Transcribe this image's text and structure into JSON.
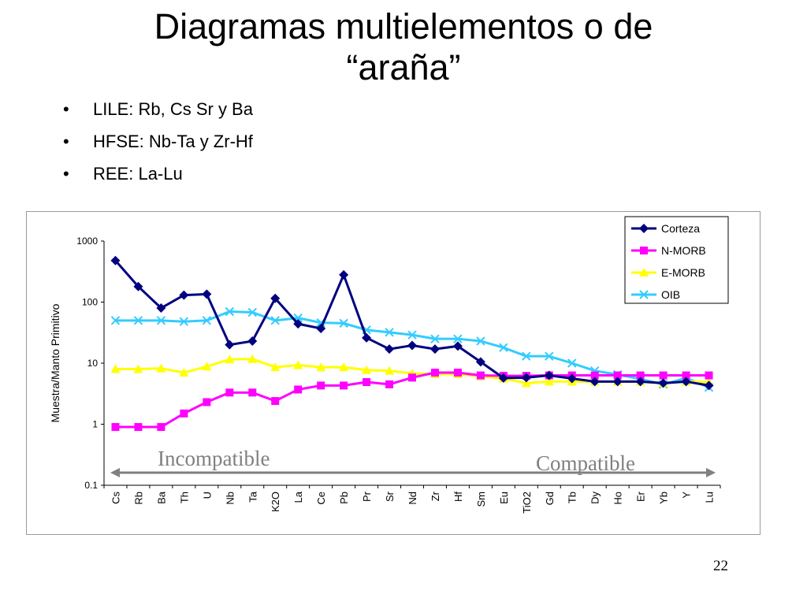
{
  "slide": {
    "title_line1": "Diagramas multielementos o de",
    "title_line2": "“araña”",
    "bullets": [
      "LILE: Rb, Cs Sr y Ba",
      "HFSE: Nb-Ta y Zr-Hf",
      "REE: La-Lu"
    ],
    "bullet_symbol": "•",
    "page_number": "22"
  },
  "chart_data": {
    "type": "line",
    "title": "",
    "ylabel": "Muestra/Manto Primitivo",
    "xlabel": "",
    "yscale": "log",
    "ylim": [
      0.1,
      1000
    ],
    "yticks": [
      "0.1",
      "1",
      "10",
      "100",
      "1000"
    ],
    "grid": false,
    "legend_position": "top-right",
    "categories": [
      "Cs",
      "Rb",
      "Ba",
      "Th",
      "U",
      "Nb",
      "Ta",
      "K2O",
      "La",
      "Ce",
      "Pb",
      "Pr",
      "Sr",
      "Nd",
      "Zr",
      "Hf",
      "Sm",
      "Eu",
      "TiO2",
      "Gd",
      "Tb",
      "Dy",
      "Ho",
      "Er",
      "Yb",
      "Y",
      "Lu"
    ],
    "series": [
      {
        "name": "Corteza",
        "color": "#000080",
        "marker": "diamond",
        "values": [
          480,
          180,
          80,
          130,
          135,
          20,
          23,
          115,
          44,
          37,
          280,
          26,
          17,
          19.5,
          17,
          19,
          10.5,
          5.7,
          5.8,
          6.3,
          5.6,
          5.0,
          5.0,
          5.0,
          4.7,
          5.0,
          4.3
        ]
      },
      {
        "name": "N-MORB",
        "color": "#ff00ff",
        "marker": "square",
        "values": [
          0.9,
          0.9,
          0.9,
          1.5,
          2.3,
          3.3,
          3.3,
          2.4,
          3.7,
          4.3,
          4.3,
          4.9,
          4.5,
          5.8,
          7.0,
          7.0,
          6.3,
          6.2,
          6.2,
          6.3,
          6.3,
          6.3,
          6.3,
          6.3,
          6.3,
          6.3,
          6.3
        ]
      },
      {
        "name": "E-MORB",
        "color": "#ffff00",
        "marker": "triangle",
        "values": [
          8.0,
          8.0,
          8.2,
          7.0,
          8.8,
          11.5,
          11.7,
          8.6,
          9.3,
          8.6,
          8.6,
          7.7,
          7.5,
          6.8,
          6.6,
          6.6,
          6.1,
          5.6,
          4.7,
          5.0,
          5.0,
          5.0,
          5.0,
          5.0,
          4.7,
          5.0,
          4.9
        ]
      },
      {
        "name": "OIB",
        "color": "#33ccff",
        "marker": "x",
        "values": [
          50,
          50,
          50,
          48,
          50,
          70,
          68,
          50,
          55,
          46,
          45,
          35,
          32,
          29,
          25,
          25,
          23,
          18,
          13,
          13,
          10,
          7.5,
          6.5,
          5.5,
          4.5,
          5.7,
          4.0
        ]
      }
    ],
    "annotations": [
      {
        "text": "Incompatible",
        "color": "#808080"
      },
      {
        "text": "Compatible",
        "color": "#808080"
      }
    ],
    "arrow_color": "#808080"
  }
}
